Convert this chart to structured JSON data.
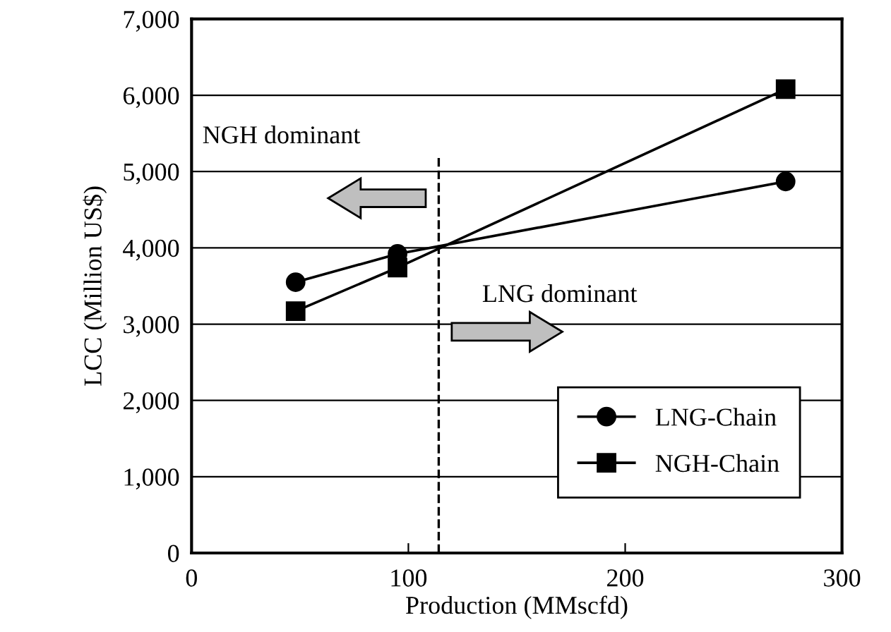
{
  "chart_data": {
    "type": "line",
    "xlabel": "Production (MMscfd)",
    "ylabel": "LCC (Million US$)",
    "xlim": [
      0,
      300
    ],
    "xticks": [
      0,
      100,
      200,
      300
    ],
    "ylim": [
      0,
      7000
    ],
    "yticks": [
      {
        "value": 0,
        "label": "0"
      },
      {
        "value": 1000,
        "label": "1,000"
      },
      {
        "value": 2000,
        "label": "2,000"
      },
      {
        "value": 3000,
        "label": "3,000"
      },
      {
        "value": 4000,
        "label": "4,000"
      },
      {
        "value": 5000,
        "label": "5,000"
      },
      {
        "value": 6000,
        "label": "6,000"
      },
      {
        "value": 7000,
        "label": "7,000"
      }
    ],
    "grid": "y",
    "legend": "bottom right",
    "series": [
      {
        "name": "LNG-Chain",
        "color": "#000000",
        "marker": "circle",
        "x": [
          48,
          95,
          274
        ],
        "values": [
          3550,
          3920,
          4870
        ]
      },
      {
        "name": "NGH-Chain",
        "color": "#000000",
        "marker": "square",
        "x": [
          48,
          95,
          274
        ],
        "values": [
          3170,
          3740,
          6080
        ]
      }
    ],
    "ref_lines": [
      {
        "axis": "x",
        "value": 114,
        "line_style": "dashed",
        "color": "#000000"
      }
    ],
    "annotations": [
      "NGH dominant",
      "LNG dominant"
    ]
  }
}
